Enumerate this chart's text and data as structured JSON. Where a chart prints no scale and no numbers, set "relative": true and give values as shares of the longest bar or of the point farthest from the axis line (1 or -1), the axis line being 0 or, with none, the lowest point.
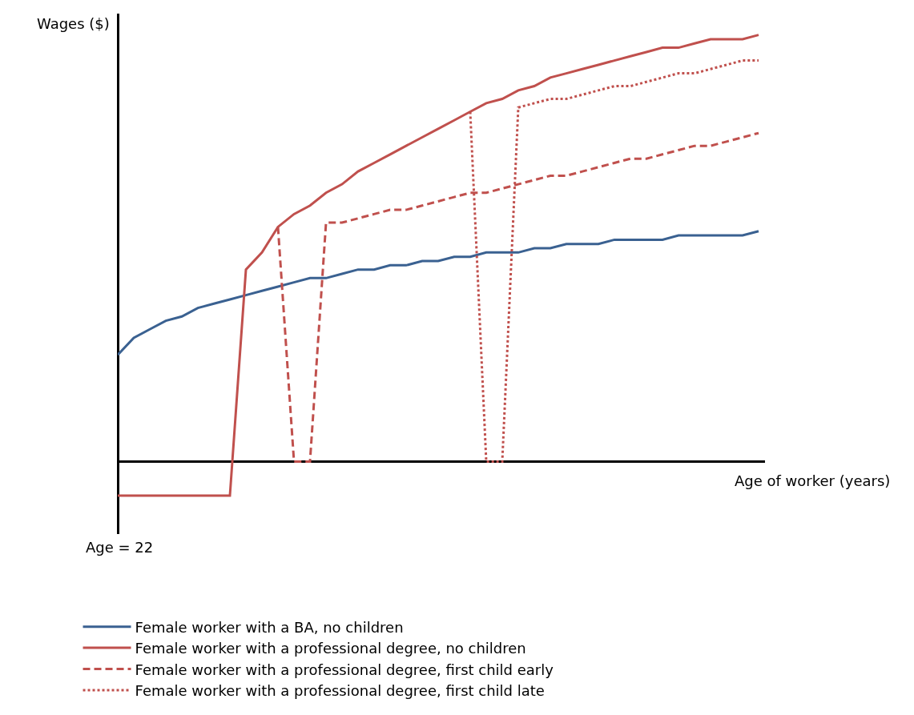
{
  "chart_data": {
    "type": "line",
    "relative": true,
    "ylabel": "Wages ($)",
    "xlabel": "Age of worker (years)",
    "annotations": [
      "Age = 22"
    ],
    "categories": [
      null,
      null,
      null,
      null,
      null,
      null,
      null,
      null,
      null,
      null,
      null,
      null,
      null,
      null,
      null,
      null,
      null,
      null,
      null,
      null,
      null,
      null,
      null,
      null,
      null,
      null,
      null,
      null,
      null,
      null,
      null,
      null,
      null,
      null,
      null,
      null,
      null,
      null,
      null,
      null,
      null
    ],
    "legend": "bottom",
    "marker": "none",
    "series": [
      {
        "name": "Female worker with a BA, no children",
        "color": "#3a6191",
        "line_style": "solid",
        "values": [
          0.25,
          0.29,
          0.31,
          0.33,
          0.34,
          0.36,
          0.37,
          0.38,
          0.39,
          0.4,
          0.41,
          0.42,
          0.43,
          0.43,
          0.44,
          0.45,
          0.45,
          0.46,
          0.46,
          0.47,
          0.47,
          0.48,
          0.48,
          0.49,
          0.49,
          0.49,
          0.5,
          0.5,
          0.51,
          0.51,
          0.51,
          0.52,
          0.52,
          0.52,
          0.52,
          0.53,
          0.53,
          0.53,
          0.53,
          0.53,
          0.54
        ]
      },
      {
        "name": "Female worker with a professional degree, no children",
        "color": "#c0504d",
        "line_style": "solid",
        "values": [
          -0.08,
          -0.08,
          -0.08,
          -0.08,
          -0.08,
          -0.08,
          -0.08,
          -0.08,
          0.45,
          0.49,
          0.55,
          0.58,
          0.6,
          0.63,
          0.65,
          0.68,
          0.7,
          0.72,
          0.74,
          0.76,
          0.78,
          0.8,
          0.82,
          0.84,
          0.85,
          0.87,
          0.88,
          0.9,
          0.91,
          0.92,
          0.93,
          0.94,
          0.95,
          0.96,
          0.97,
          0.97,
          0.98,
          0.99,
          0.99,
          0.99,
          1
        ]
      },
      {
        "name": "Female worker with a professional degree, first child early",
        "color": "#c0504d",
        "line_style": "dashed",
        "values": [
          null,
          null,
          null,
          null,
          null,
          null,
          null,
          null,
          null,
          null,
          0.55,
          0,
          0,
          0.56,
          0.56,
          0.57,
          0.58,
          0.59,
          0.59,
          0.6,
          0.61,
          0.62,
          0.63,
          0.63,
          0.64,
          0.65,
          0.66,
          0.67,
          0.67,
          0.68,
          0.69,
          0.7,
          0.71,
          0.71,
          0.72,
          0.73,
          0.74,
          0.74,
          0.75,
          0.76,
          0.77
        ]
      },
      {
        "name": "Female worker with a professional degree, first child late",
        "color": "#c0504d",
        "line_style": "dotted",
        "values": [
          null,
          null,
          null,
          null,
          null,
          null,
          null,
          null,
          null,
          null,
          null,
          null,
          null,
          null,
          null,
          null,
          null,
          null,
          null,
          null,
          null,
          null,
          0.82,
          0,
          0,
          0.83,
          0.84,
          0.85,
          0.85,
          0.86,
          0.87,
          0.88,
          0.88,
          0.89,
          0.9,
          0.91,
          0.91,
          0.92,
          0.93,
          0.94,
          0.94
        ]
      }
    ]
  }
}
